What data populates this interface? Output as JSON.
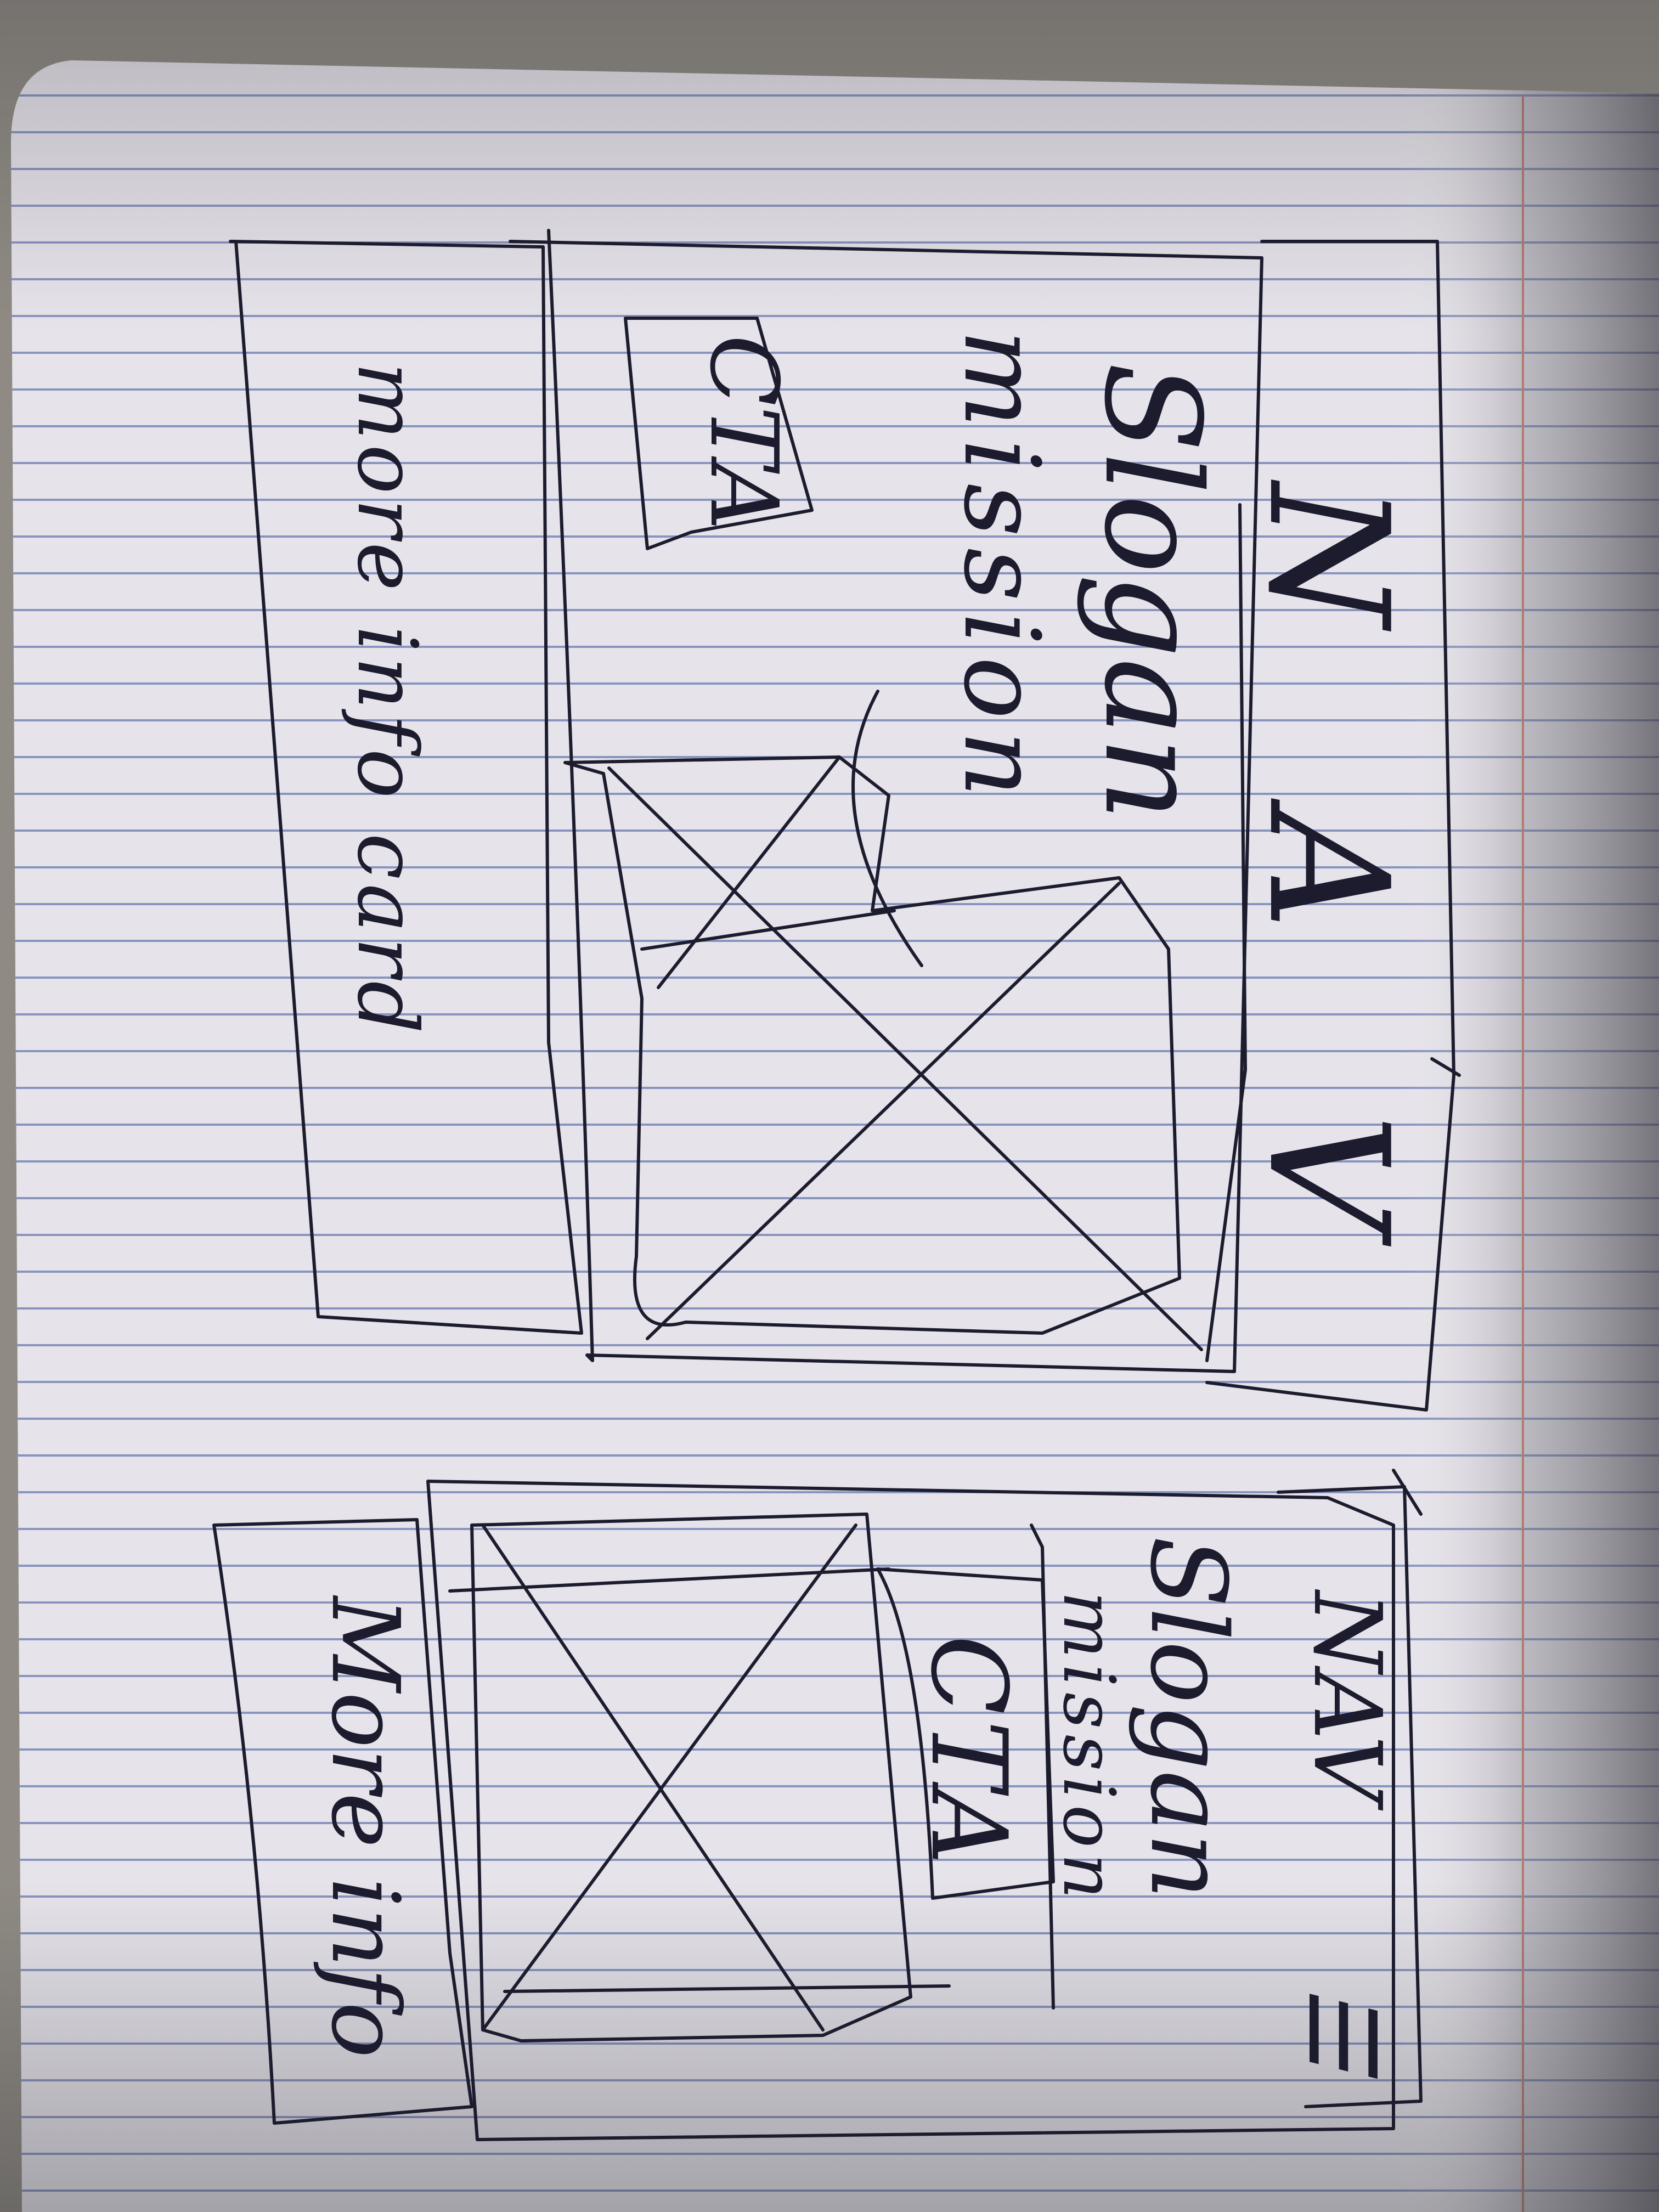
{
  "sketches": {
    "desktop": {
      "nav_label": "N A V",
      "slogan": "Slogan",
      "mission": "mission",
      "cta": "CTA",
      "card_label": "more info card"
    },
    "mobile": {
      "nav_label": "NAV",
      "menu_glyph": "☰",
      "slogan": "Slogan",
      "mission": "mission",
      "cta": "CTA",
      "card_label": "More info"
    }
  },
  "colors": {
    "paper": "#e6e4ea",
    "rule_line": "#6f7fb4",
    "margin_line": "#d3826e",
    "ink": "#1c1c2e",
    "table": "#8f8b84"
  }
}
